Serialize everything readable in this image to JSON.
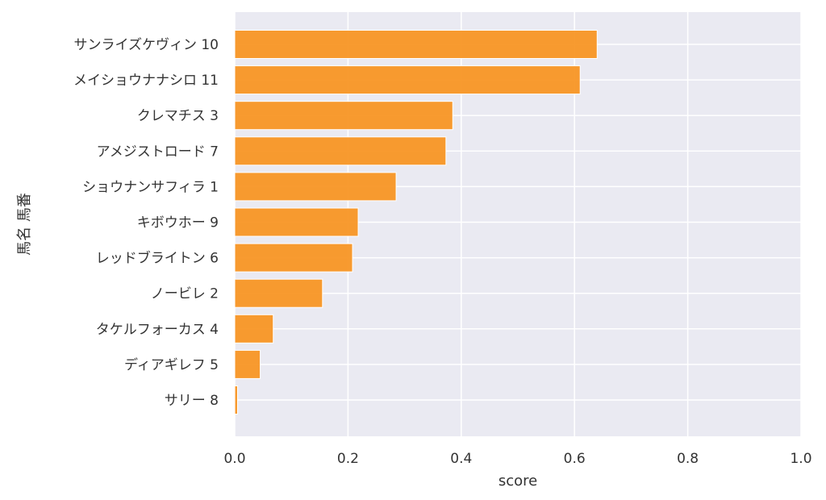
{
  "chart_data": {
    "type": "bar",
    "orientation": "horizontal",
    "categories": [
      "サンライズケヴィン 10",
      "メイショウナナシロ 11",
      "クレマチス 3",
      "アメジストロード 7",
      "ショウナンサフィラ 1",
      "キボウホー 9",
      "レッドブライトン 6",
      "ノービレ 2",
      "タケルフォーカス 4",
      "ディアギレフ 5",
      "サリー 8"
    ],
    "values": [
      0.64,
      0.61,
      0.385,
      0.373,
      0.285,
      0.218,
      0.208,
      0.155,
      0.068,
      0.045,
      0.005
    ],
    "xlabel": "score",
    "ylabel": "馬名 馬番",
    "xlim": [
      0.0,
      1.0
    ],
    "xticks": [
      "0.0",
      "0.2",
      "0.4",
      "0.6",
      "0.8",
      "1.0"
    ],
    "grid": true,
    "colors": {
      "bar": "#f7931e",
      "bar_edge": "#ffffff",
      "plot_background": "#eaeaf2",
      "grid": "#ffffff"
    }
  }
}
